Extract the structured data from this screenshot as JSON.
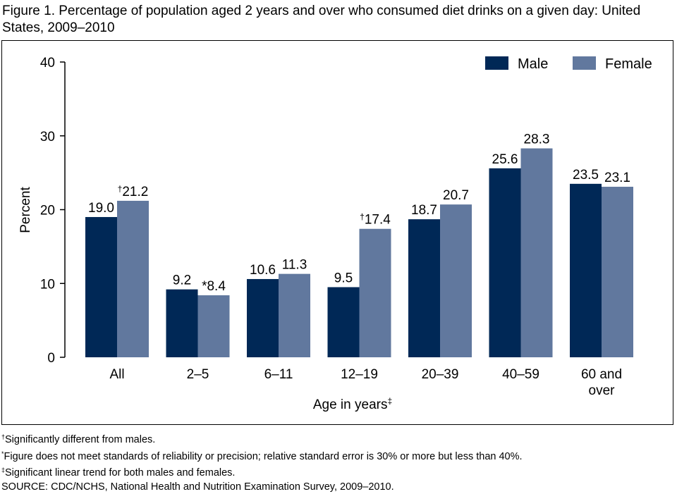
{
  "chart_data": {
    "type": "bar",
    "title": "Figure 1. Percentage of population aged 2 years and over who consumed diet drinks on a given day: United States, 2009–2010",
    "xlabel": "Age in years",
    "xlabel_mark": "‡",
    "ylabel": "Percent",
    "ylim": [
      0,
      40
    ],
    "yticks": [
      0,
      10,
      20,
      30,
      40
    ],
    "grid": false,
    "legend_position": "top-right",
    "categories": [
      "All",
      "2–5",
      "6–11",
      "12–19",
      "20–39",
      "40–59",
      "60 and over"
    ],
    "series": [
      {
        "name": "Male",
        "color": "#002856",
        "values": [
          19.0,
          9.2,
          10.6,
          9.5,
          18.7,
          25.6,
          23.5
        ],
        "labels": [
          "19.0",
          "9.2",
          "10.6",
          "9.5",
          "18.7",
          "25.6",
          "23.5"
        ]
      },
      {
        "name": "Female",
        "color": "#61789e",
        "values": [
          21.2,
          8.4,
          11.3,
          17.4,
          20.7,
          28.3,
          23.1
        ],
        "labels": [
          "†21.2",
          "*8.4",
          "11.3",
          "†17.4",
          "20.7",
          "28.3",
          "23.1"
        ]
      }
    ]
  },
  "footnotes": [
    {
      "mark": "†",
      "text": "Significantly different from males."
    },
    {
      "mark": "*",
      "text": "Figure does not meet standards of reliability or precision; relative standard error is 30% or more but less than 40%."
    },
    {
      "mark": "‡",
      "text": "Significant linear trend for both males and females."
    },
    {
      "mark": "",
      "text": "SOURCE: CDC/NCHS, National Health and Nutrition Examination Survey, 2009–2010."
    }
  ]
}
